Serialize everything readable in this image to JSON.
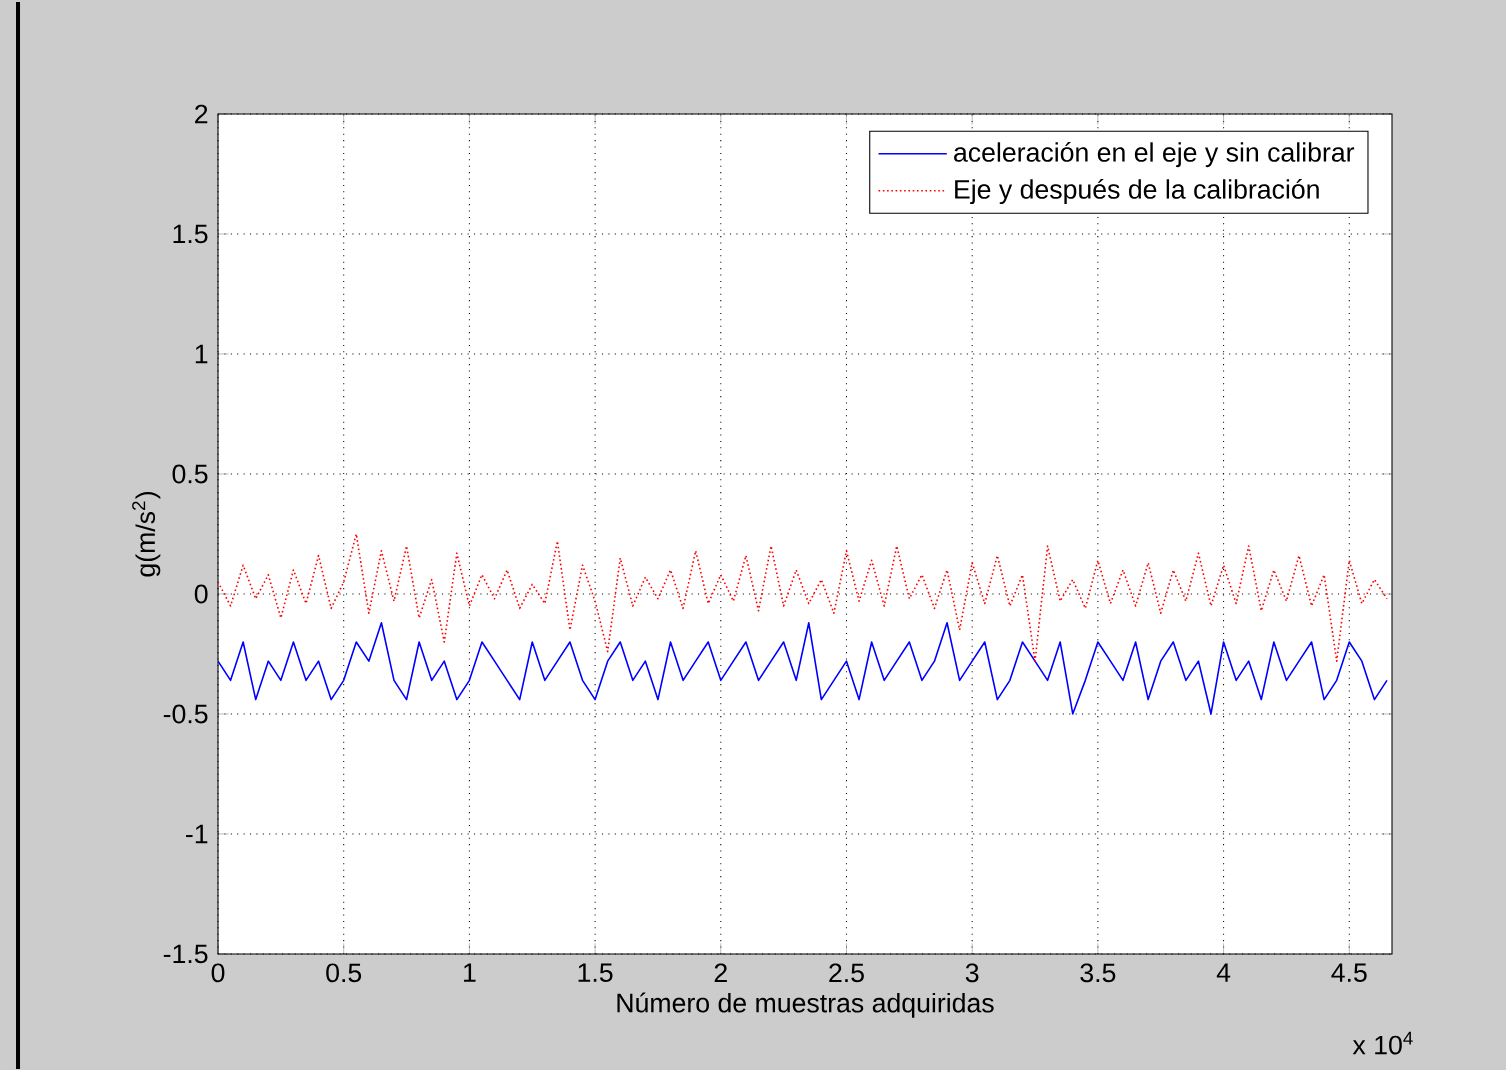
{
  "chart_data": {
    "type": "line",
    "xlabel": "Número de muestras adquiridas",
    "ylabel": "g(m/s$^{2}$)",
    "annotations": [
      "x 10$^{4}$"
    ],
    "x": [
      0,
      0.05,
      0.1,
      0.15,
      0.2,
      0.25,
      0.3,
      0.35,
      0.4,
      0.45,
      0.5,
      0.55,
      0.6,
      0.65,
      0.7,
      0.75,
      0.8,
      0.85,
      0.9,
      0.95,
      1,
      1.05,
      1.1,
      1.15,
      1.2,
      1.25,
      1.3,
      1.35,
      1.4,
      1.45,
      1.5,
      1.55,
      1.6,
      1.65,
      1.7,
      1.75,
      1.8,
      1.85,
      1.9,
      1.95,
      2,
      2.05,
      2.1,
      2.15,
      2.2,
      2.25,
      2.3,
      2.35,
      2.4,
      2.45,
      2.5,
      2.55,
      2.6,
      2.65,
      2.7,
      2.75,
      2.8,
      2.85,
      2.9,
      2.95,
      3,
      3.05,
      3.1,
      3.15,
      3.2,
      3.25,
      3.3,
      3.35,
      3.4,
      3.45,
      3.5,
      3.55,
      3.6,
      3.65,
      3.7,
      3.75,
      3.8,
      3.85,
      3.9,
      3.95,
      4,
      4.05,
      4.1,
      4.15,
      4.2,
      4.25,
      4.3,
      4.35,
      4.4,
      4.45,
      4.5,
      4.55,
      4.6,
      4.65
    ],
    "series": [
      {
        "name": "aceleración en el eje y sin calibrar",
        "color": "#0000ff",
        "line_style": "solid",
        "values": [
          -0.28,
          -0.36,
          -0.2,
          -0.44,
          -0.28,
          -0.36,
          -0.2,
          -0.36,
          -0.28,
          -0.44,
          -0.36,
          -0.2,
          -0.28,
          -0.12,
          -0.36,
          -0.44,
          -0.2,
          -0.36,
          -0.28,
          -0.44,
          -0.36,
          -0.2,
          -0.28,
          -0.36,
          -0.44,
          -0.2,
          -0.36,
          -0.28,
          -0.2,
          -0.36,
          -0.44,
          -0.28,
          -0.2,
          -0.36,
          -0.28,
          -0.44,
          -0.2,
          -0.36,
          -0.28,
          -0.2,
          -0.36,
          -0.28,
          -0.2,
          -0.36,
          -0.28,
          -0.2,
          -0.36,
          -0.12,
          -0.44,
          -0.36,
          -0.28,
          -0.44,
          -0.2,
          -0.36,
          -0.28,
          -0.2,
          -0.36,
          -0.28,
          -0.12,
          -0.36,
          -0.28,
          -0.2,
          -0.44,
          -0.36,
          -0.2,
          -0.28,
          -0.36,
          -0.2,
          -0.5,
          -0.36,
          -0.2,
          -0.28,
          -0.36,
          -0.2,
          -0.44,
          -0.28,
          -0.2,
          -0.36,
          -0.28,
          -0.5,
          -0.2,
          -0.36,
          -0.28,
          -0.44,
          -0.2,
          -0.36,
          -0.28,
          -0.2,
          -0.44,
          -0.36,
          -0.2,
          -0.28,
          -0.44,
          -0.36
        ]
      },
      {
        "name": "Eje y después de la calibración",
        "color": "#ff0000",
        "line_style": "dotted",
        "values": [
          0.05,
          -0.05,
          0.12,
          -0.02,
          0.08,
          -0.1,
          0.1,
          -0.04,
          0.16,
          -0.06,
          0.05,
          0.25,
          -0.08,
          0.18,
          -0.03,
          0.2,
          -0.1,
          0.06,
          -0.2,
          0.17,
          -0.05,
          0.08,
          -0.02,
          0.1,
          -0.06,
          0.04,
          -0.04,
          0.22,
          -0.15,
          0.12,
          -0.03,
          -0.24,
          0.15,
          -0.05,
          0.07,
          -0.02,
          0.1,
          -0.06,
          0.18,
          -0.04,
          0.08,
          -0.03,
          0.16,
          -0.07,
          0.2,
          -0.05,
          0.1,
          -0.04,
          0.06,
          -0.08,
          0.18,
          -0.03,
          0.14,
          -0.05,
          0.2,
          -0.02,
          0.08,
          -0.06,
          0.1,
          -0.15,
          0.13,
          -0.04,
          0.16,
          -0.05,
          0.08,
          -0.28,
          0.2,
          -0.03,
          0.06,
          -0.06,
          0.14,
          -0.04,
          0.1,
          -0.05,
          0.13,
          -0.08,
          0.1,
          -0.03,
          0.17,
          -0.05,
          0.12,
          -0.04,
          0.2,
          -0.07,
          0.1,
          -0.03,
          0.16,
          -0.05,
          0.08,
          -0.28,
          0.14,
          -0.04,
          0.06,
          -0.02
        ]
      }
    ],
    "xlim": [
      0,
      4.67
    ],
    "xticks": [
      0,
      0.5,
      1,
      1.5,
      2,
      2.5,
      3,
      3.5,
      4,
      4.5
    ],
    "ylim": [
      -1.5,
      2
    ],
    "yticks": [
      -1.5,
      -1,
      -0.5,
      0,
      0.5,
      1,
      1.5,
      2
    ],
    "grid": true,
    "legend": "top right"
  }
}
